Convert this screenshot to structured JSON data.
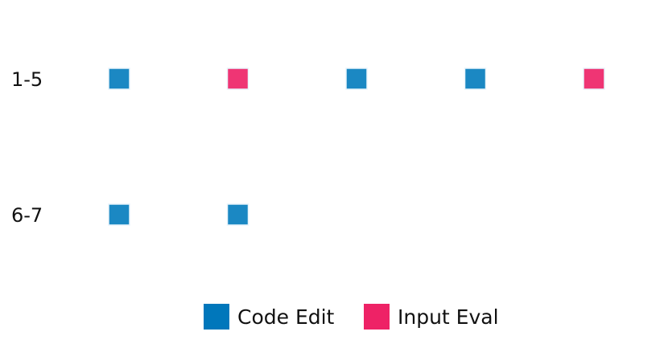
{
  "chart_data": {
    "type": "scatter",
    "title": "",
    "xlabel": "",
    "ylabel": "",
    "rows": [
      {
        "label": "1-5",
        "points": [
          "Code Edit",
          "Input Eval",
          "Code Edit",
          "Code Edit",
          "Input Eval"
        ]
      },
      {
        "label": "6-7",
        "points": [
          "Code Edit",
          "Code Edit"
        ]
      }
    ],
    "legend": {
      "placement": "bottom-center",
      "entries": [
        {
          "name": "Code Edit",
          "color": "#0077bb"
        },
        {
          "name": "Input Eval",
          "color": "#ee2266"
        }
      ]
    },
    "marker_colors": {
      "Code Edit": "#1b88c3",
      "Input Eval": "#ef3574"
    },
    "grid": false
  }
}
